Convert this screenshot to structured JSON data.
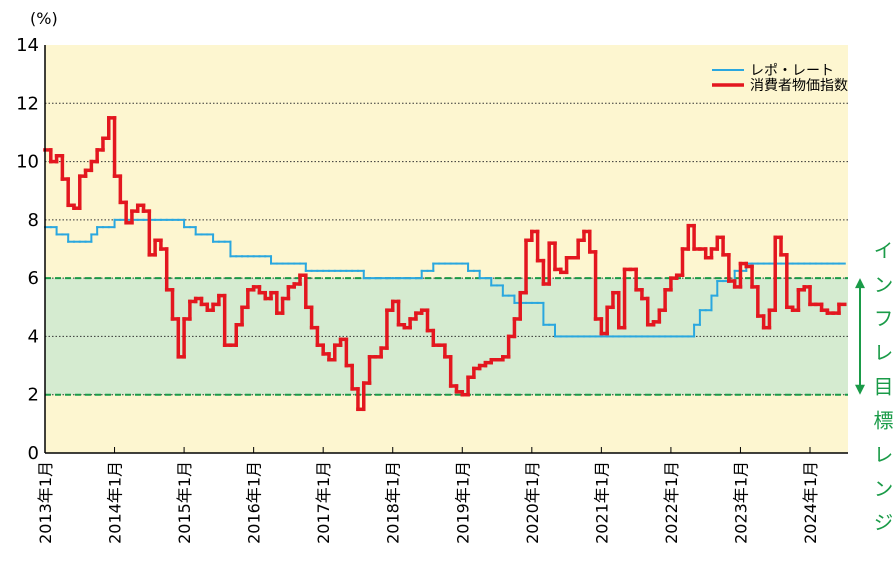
{
  "chart_data": {
    "type": "step-line",
    "y_unit_label": "(%)",
    "x": [
      "2013-01",
      "2013-02",
      "2013-03",
      "2013-04",
      "2013-05",
      "2013-06",
      "2013-07",
      "2013-08",
      "2013-09",
      "2013-10",
      "2013-11",
      "2013-12",
      "2014-01",
      "2014-02",
      "2014-03",
      "2014-04",
      "2014-05",
      "2014-06",
      "2014-07",
      "2014-08",
      "2014-09",
      "2014-10",
      "2014-11",
      "2014-12",
      "2015-01",
      "2015-02",
      "2015-03",
      "2015-04",
      "2015-05",
      "2015-06",
      "2015-07",
      "2015-08",
      "2015-09",
      "2015-10",
      "2015-11",
      "2015-12",
      "2016-01",
      "2016-02",
      "2016-03",
      "2016-04",
      "2016-05",
      "2016-06",
      "2016-07",
      "2016-08",
      "2016-09",
      "2016-10",
      "2016-11",
      "2016-12",
      "2017-01",
      "2017-02",
      "2017-03",
      "2017-04",
      "2017-05",
      "2017-06",
      "2017-07",
      "2017-08",
      "2017-09",
      "2017-10",
      "2017-11",
      "2017-12",
      "2018-01",
      "2018-02",
      "2018-03",
      "2018-04",
      "2018-05",
      "2018-06",
      "2018-07",
      "2018-08",
      "2018-09",
      "2018-10",
      "2018-11",
      "2018-12",
      "2019-01",
      "2019-02",
      "2019-03",
      "2019-04",
      "2019-05",
      "2019-06",
      "2019-07",
      "2019-08",
      "2019-09",
      "2019-10",
      "2019-11",
      "2019-12",
      "2020-01",
      "2020-02",
      "2020-03",
      "2020-04",
      "2020-05",
      "2020-06",
      "2020-07",
      "2020-08",
      "2020-09",
      "2020-10",
      "2020-11",
      "2020-12",
      "2021-01",
      "2021-02",
      "2021-03",
      "2021-04",
      "2021-05",
      "2021-06",
      "2021-07",
      "2021-08",
      "2021-09",
      "2021-10",
      "2021-11",
      "2021-12",
      "2022-01",
      "2022-02",
      "2022-03",
      "2022-04",
      "2022-05",
      "2022-06",
      "2022-07",
      "2022-08",
      "2022-09",
      "2022-10",
      "2022-11",
      "2022-12",
      "2023-01",
      "2023-02",
      "2023-03",
      "2023-04",
      "2023-05",
      "2023-06",
      "2023-07",
      "2023-08",
      "2023-09",
      "2023-10",
      "2023-11",
      "2023-12",
      "2024-01",
      "2024-02",
      "2024-03",
      "2024-04",
      "2024-05",
      "2024-06"
    ],
    "series": [
      {
        "name": "レポ・レート",
        "color": "#2aa7df",
        "width": 2,
        "values": [
          7.75,
          7.75,
          7.5,
          7.5,
          7.25,
          7.25,
          7.25,
          7.25,
          7.5,
          7.75,
          7.75,
          7.75,
          8,
          8,
          8,
          8,
          8,
          8,
          8,
          8,
          8,
          8,
          8,
          8,
          7.75,
          7.75,
          7.5,
          7.5,
          7.5,
          7.25,
          7.25,
          7.25,
          6.75,
          6.75,
          6.75,
          6.75,
          6.75,
          6.75,
          6.75,
          6.5,
          6.5,
          6.5,
          6.5,
          6.5,
          6.5,
          6.25,
          6.25,
          6.25,
          6.25,
          6.25,
          6.25,
          6.25,
          6.25,
          6.25,
          6.25,
          6,
          6,
          6,
          6,
          6,
          6,
          6,
          6,
          6,
          6,
          6.25,
          6.25,
          6.5,
          6.5,
          6.5,
          6.5,
          6.5,
          6.5,
          6.25,
          6.25,
          6,
          6,
          5.75,
          5.75,
          5.4,
          5.4,
          5.15,
          5.15,
          5.15,
          5.15,
          5.15,
          4.4,
          4.4,
          4,
          4,
          4,
          4,
          4,
          4,
          4,
          4,
          4,
          4,
          4,
          4,
          4,
          4,
          4,
          4,
          4,
          4,
          4,
          4,
          4,
          4,
          4,
          4,
          4.4,
          4.9,
          4.9,
          5.4,
          5.9,
          5.9,
          5.9,
          6.25,
          6.25,
          6.5,
          6.5,
          6.5,
          6.5,
          6.5,
          6.5,
          6.5,
          6.5,
          6.5,
          6.5,
          6.5,
          6.5,
          6.5,
          6.5,
          6.5,
          6.5,
          6.5
        ]
      },
      {
        "name": "消費者物価指数",
        "color": "#e3171f",
        "width": 3.5,
        "values": [
          10.4,
          10.0,
          10.2,
          9.4,
          8.5,
          8.4,
          9.5,
          9.7,
          10.0,
          10.4,
          10.8,
          11.5,
          9.5,
          8.6,
          7.9,
          8.3,
          8.5,
          8.3,
          6.8,
          7.3,
          7.0,
          5.6,
          4.6,
          3.3,
          4.6,
          5.2,
          5.3,
          5.1,
          4.9,
          5.1,
          5.4,
          3.7,
          3.7,
          4.4,
          5.0,
          5.6,
          5.7,
          5.5,
          5.3,
          5.5,
          4.8,
          5.3,
          5.7,
          5.8,
          6.1,
          5.0,
          4.3,
          3.7,
          3.4,
          3.2,
          3.7,
          3.9,
          3.0,
          2.2,
          1.5,
          2.4,
          3.3,
          3.3,
          3.6,
          4.9,
          5.2,
          4.4,
          4.3,
          4.6,
          4.8,
          4.9,
          4.2,
          3.7,
          3.7,
          3.3,
          2.3,
          2.1,
          2.0,
          2.6,
          2.9,
          3.0,
          3.1,
          3.2,
          3.2,
          3.3,
          4.0,
          4.6,
          5.5,
          7.3,
          7.6,
          6.6,
          5.8,
          7.2,
          6.3,
          6.2,
          6.7,
          6.7,
          7.3,
          7.6,
          6.9,
          4.6,
          4.1,
          5.0,
          5.5,
          4.3,
          6.3,
          6.3,
          5.6,
          5.3,
          4.4,
          4.5,
          4.9,
          5.6,
          6.0,
          6.1,
          7.0,
          7.8,
          7.0,
          7.0,
          6.7,
          7.0,
          7.4,
          6.8,
          5.9,
          5.7,
          6.5,
          6.4,
          5.7,
          4.7,
          4.3,
          4.9,
          7.4,
          6.8,
          5.0,
          4.9,
          5.6,
          5.7,
          5.1,
          5.1,
          4.9,
          4.8,
          4.8,
          5.1
        ]
      }
    ],
    "ylim": [
      0,
      14
    ],
    "yticks": [
      0,
      2,
      4,
      6,
      8,
      10,
      12,
      14
    ],
    "grid": true,
    "xticks": [
      {
        "value": "2013-01",
        "label": "2013年1月"
      },
      {
        "value": "2014-01",
        "label": "2014年1月"
      },
      {
        "value": "2015-01",
        "label": "2015年1月"
      },
      {
        "value": "2016-01",
        "label": "2016年1月"
      },
      {
        "value": "2017-01",
        "label": "2017年1月"
      },
      {
        "value": "2018-01",
        "label": "2018年1月"
      },
      {
        "value": "2019-01",
        "label": "2019年1月"
      },
      {
        "value": "2020-01",
        "label": "2020年1月"
      },
      {
        "value": "2021-01",
        "label": "2021年1月"
      },
      {
        "value": "2022-01",
        "label": "2022年1月"
      },
      {
        "value": "2023-01",
        "label": "2023年1月"
      },
      {
        "value": "2024-01",
        "label": "2024年1月"
      }
    ],
    "target_band": {
      "range": [
        2,
        6
      ],
      "label": "インフレ目標レンジ",
      "color": "#1a9b48",
      "fill": "#d5ebd0"
    },
    "background": "#fdf6d0",
    "legend": "top-right"
  }
}
